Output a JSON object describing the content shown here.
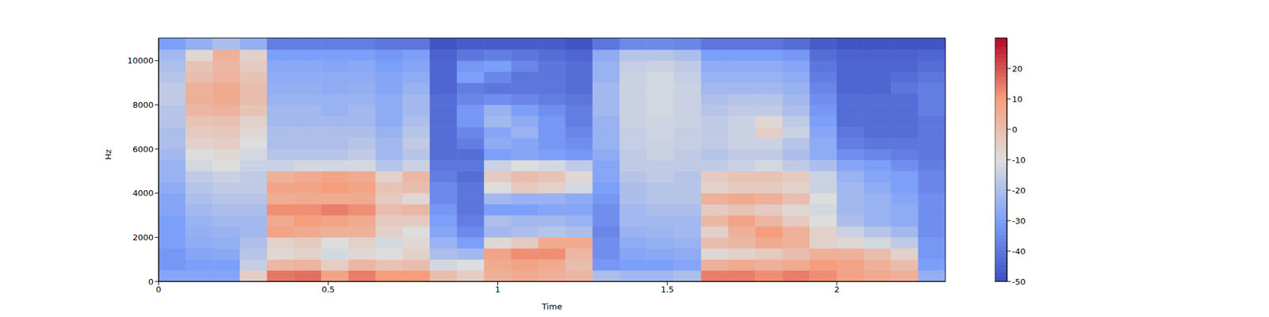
{
  "chart_data": {
    "type": "heatmap",
    "xlabel": "Time",
    "ylabel": "Hz",
    "x_edges": [
      0,
      0.08,
      0.16,
      0.24,
      0.32,
      0.4,
      0.48,
      0.56,
      0.64,
      0.72,
      0.8,
      0.88,
      0.96,
      1.04,
      1.12,
      1.2,
      1.28,
      1.36,
      1.44,
      1.52,
      1.6,
      1.68,
      1.76,
      1.84,
      1.92,
      2,
      2.08,
      2.16,
      2.24,
      2.32
    ],
    "y_edges": [
      0,
      500,
      1000,
      1500,
      2000,
      2500,
      3000,
      3500,
      4000,
      4500,
      5000,
      5500,
      6000,
      6500,
      7000,
      7500,
      8000,
      8500,
      9000,
      9500,
      10000,
      10500,
      11025
    ],
    "values": [
      [
        -28,
        -32,
        -32,
        -30,
        -30,
        -30,
        -28,
        -28,
        -26,
        -24,
        -24,
        -22,
        -20,
        -20,
        -18,
        -18,
        -16,
        -16,
        -18,
        -20,
        -22,
        -30
      ],
      [
        -28,
        -30,
        -28,
        -26,
        -25,
        -24,
        -22,
        -20,
        -18,
        -16,
        -12,
        -10,
        -6,
        -4,
        -2,
        2,
        4,
        4,
        0,
        -2,
        -8,
        -25
      ],
      [
        -28,
        -30,
        -27,
        -25,
        -24,
        -22,
        -20,
        -18,
        -16,
        -14,
        -10,
        -8,
        -5,
        -3,
        -1,
        3,
        6,
        6,
        3,
        2,
        4,
        -20
      ],
      [
        -5,
        -15,
        -18,
        -20,
        -22,
        -22,
        -20,
        -18,
        -16,
        -16,
        -14,
        -12,
        -10,
        -8,
        -6,
        -2,
        0,
        0,
        -2,
        -4,
        -6,
        -25
      ],
      [
        15,
        2,
        -8,
        -6,
        8,
        6,
        12,
        5,
        8,
        4,
        -14,
        -18,
        -20,
        -20,
        -22,
        -22,
        -24,
        -25,
        -26,
        -27,
        -30,
        -38
      ],
      [
        16,
        3,
        -6,
        -4,
        6,
        10,
        12,
        6,
        8,
        6,
        -12,
        -18,
        -20,
        -20,
        -22,
        -22,
        -24,
        -25,
        -26,
        -27,
        -30,
        -38
      ],
      [
        8,
        -5,
        -12,
        -10,
        4,
        8,
        14,
        6,
        10,
        8,
        -12,
        -18,
        -20,
        -20,
        -22,
        -24,
        -24,
        -26,
        -26,
        -28,
        -30,
        -38
      ],
      [
        14,
        2,
        -8,
        -6,
        4,
        6,
        12,
        6,
        8,
        6,
        -12,
        -16,
        -18,
        -20,
        -22,
        -22,
        -24,
        -25,
        -26,
        -27,
        -30,
        -38
      ],
      [
        10,
        -2,
        -10,
        -12,
        -6,
        -4,
        0,
        -4,
        -2,
        -6,
        -18,
        -22,
        -22,
        -24,
        -26,
        -26,
        -26,
        -28,
        -28,
        -30,
        -32,
        -40
      ],
      [
        10,
        0,
        -6,
        -8,
        -10,
        -4,
        2,
        -8,
        0,
        2,
        -14,
        -18,
        -16,
        -18,
        -20,
        -22,
        -22,
        -24,
        -26,
        -28,
        -30,
        -40
      ],
      [
        0,
        -12,
        -20,
        -24,
        -28,
        -30,
        -32,
        -35,
        -35,
        -38,
        -40,
        -42,
        -42,
        -42,
        -42,
        -42,
        -42,
        -44,
        -44,
        -44,
        -45,
        -48
      ],
      [
        -5,
        -10,
        -22,
        -30,
        -35,
        -38,
        -40,
        -40,
        -40,
        -42,
        -40,
        -42,
        -38,
        -36,
        -32,
        -32,
        -36,
        -38,
        -30,
        -32,
        -40,
        -46
      ],
      [
        4,
        6,
        8,
        -8,
        -22,
        -20,
        -30,
        -22,
        -10,
        -4,
        -14,
        -30,
        -26,
        -28,
        -22,
        -24,
        -34,
        -40,
        -36,
        -30,
        -38,
        -46
      ],
      [
        6,
        8,
        12,
        -4,
        -20,
        -22,
        -30,
        -24,
        -4,
        0,
        -10,
        -28,
        -28,
        -24,
        -26,
        -30,
        -36,
        -40,
        -40,
        -36,
        -40,
        -46
      ],
      [
        4,
        6,
        12,
        6,
        -18,
        -22,
        -28,
        -24,
        -6,
        -2,
        -12,
        -30,
        -32,
        -32,
        -32,
        -34,
        -38,
        -40,
        -40,
        -40,
        -42,
        -46
      ],
      [
        2,
        0,
        2,
        6,
        -20,
        -24,
        -28,
        -26,
        -12,
        -8,
        -16,
        -32,
        -34,
        -36,
        -38,
        -38,
        -40,
        -42,
        -42,
        -42,
        -44,
        -48
      ],
      [
        -20,
        -32,
        -34,
        -34,
        -36,
        -34,
        -34,
        -32,
        -30,
        -28,
        -28,
        -26,
        -24,
        -24,
        -24,
        -22,
        -22,
        -22,
        -24,
        -24,
        -26,
        -40
      ],
      [
        -22,
        -30,
        -28,
        -26,
        -24,
        -22,
        -22,
        -20,
        -20,
        -18,
        -16,
        -16,
        -15,
        -15,
        -14,
        -14,
        -14,
        -14,
        -14,
        -15,
        -18,
        -35
      ],
      [
        -22,
        -30,
        -27,
        -25,
        -23,
        -22,
        -20,
        -18,
        -18,
        -16,
        -16,
        -14,
        -14,
        -13,
        -13,
        -12,
        -12,
        -12,
        -12,
        -14,
        -18,
        -35
      ],
      [
        -20,
        -28,
        -26,
        -24,
        -22,
        -22,
        -20,
        -18,
        -18,
        -18,
        -16,
        -16,
        -15,
        -15,
        -14,
        -14,
        -14,
        -14,
        -15,
        -16,
        -20,
        -36
      ],
      [
        14,
        4,
        -8,
        0,
        -6,
        2,
        -4,
        4,
        -6,
        -4,
        -16,
        -18,
        -16,
        -16,
        -16,
        -18,
        -20,
        -22,
        -24,
        -26,
        -30,
        -40
      ],
      [
        14,
        6,
        -6,
        2,
        4,
        8,
        -2,
        6,
        -4,
        -2,
        -14,
        -16,
        -14,
        -14,
        -14,
        -16,
        -18,
        -22,
        -24,
        -26,
        -30,
        -40
      ],
      [
        12,
        4,
        -4,
        6,
        10,
        2,
        -4,
        4,
        -4,
        -2,
        -12,
        -16,
        -14,
        -5,
        -8,
        -16,
        -18,
        -22,
        -24,
        -26,
        -30,
        -40
      ],
      [
        14,
        6,
        0,
        4,
        4,
        -4,
        -8,
        0,
        -6,
        -4,
        -16,
        -20,
        -18,
        -14,
        -16,
        -20,
        -22,
        -24,
        -26,
        -28,
        -32,
        -42
      ],
      [
        12,
        10,
        4,
        -6,
        -6,
        -10,
        -12,
        -10,
        -14,
        -14,
        -20,
        -26,
        -26,
        -28,
        -30,
        -32,
        -34,
        -36,
        -38,
        -40,
        -42,
        -46
      ],
      [
        8,
        8,
        4,
        -8,
        -14,
        -20,
        -22,
        -22,
        -22,
        -24,
        -28,
        -34,
        -38,
        -40,
        -42,
        -42,
        -42,
        -44,
        -44,
        -44,
        -45,
        -48
      ],
      [
        6,
        4,
        0,
        -12,
        -18,
        -24,
        -24,
        -24,
        -26,
        -28,
        -30,
        -36,
        -40,
        -42,
        -42,
        -42,
        -42,
        -44,
        -44,
        -44,
        -45,
        -48
      ],
      [
        4,
        0,
        -6,
        -16,
        -22,
        -26,
        -26,
        -28,
        -30,
        -30,
        -34,
        -38,
        -40,
        -42,
        -42,
        -42,
        -42,
        -40,
        -42,
        -44,
        -45,
        -48
      ],
      [
        -25,
        -30,
        -32,
        -32,
        -34,
        -34,
        -34,
        -34,
        -36,
        -36,
        -38,
        -40,
        -40,
        -40,
        -40,
        -38,
        -38,
        -38,
        -40,
        -42,
        -44,
        -48
      ]
    ],
    "xlim": [
      0,
      2.32
    ],
    "ylim": [
      0,
      11025
    ],
    "xticks": [
      0,
      0.5,
      1,
      1.5,
      2
    ],
    "yticks": [
      0,
      2000,
      4000,
      6000,
      8000,
      10000
    ],
    "zlim": [
      -50,
      30
    ],
    "zticks": [
      -50,
      -40,
      -30,
      -20,
      -10,
      0,
      10,
      20
    ]
  }
}
